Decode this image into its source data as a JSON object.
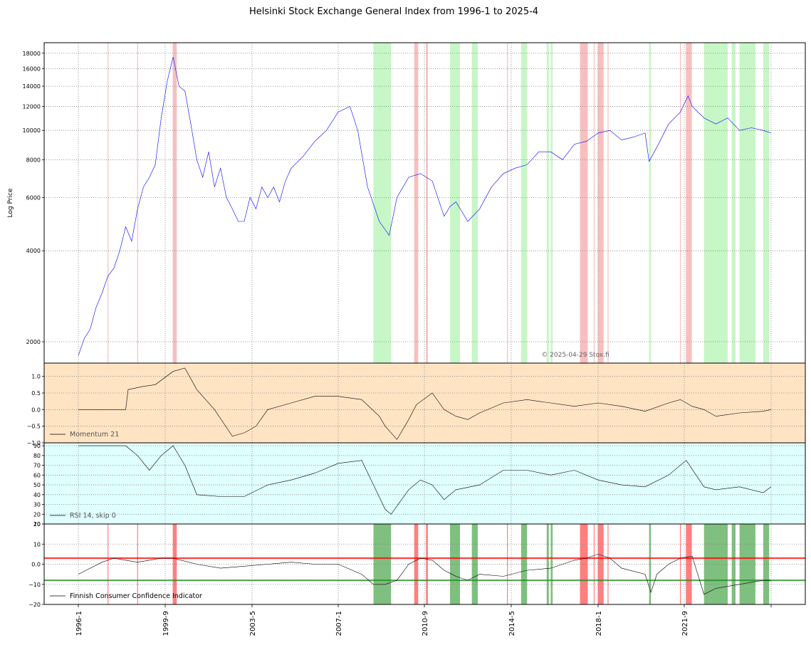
{
  "chart_data": {
    "type": "line",
    "title": "Helsinki Stock Exchange General Index from 1996-1 to 2025-4",
    "watermark": "© 2025-04-29 Stox.fi",
    "x_range": [
      "1996-1",
      "2025-4"
    ],
    "x_ticks": [
      "1996-1",
      "1999-9",
      "2003-5",
      "2007-1",
      "2010-9",
      "2014-5",
      "2018-1",
      "2021-9",
      ""
    ],
    "grid": true,
    "colors": {
      "price": "#0000ff",
      "indicator_line": "#000000",
      "bull_zone": "#90ee90",
      "bear_zone": "#f08080",
      "momentum_bg": "#ffe4c4",
      "rsi_bg": "#e0ffff",
      "upper_threshold": "#ff0000",
      "lower_threshold": "#228b22"
    },
    "zones": {
      "red": [
        [
          1997.25,
          1997.25
        ],
        [
          1998.5,
          1998.5
        ],
        [
          2000.0,
          2000.17
        ],
        [
          2014.17,
          2014.17
        ],
        [
          2010.25,
          2010.42
        ],
        [
          2010.75,
          2010.83
        ],
        [
          2017.25,
          2017.58
        ],
        [
          2017.83,
          2017.83
        ],
        [
          2018.0,
          2018.25
        ],
        [
          2018.42,
          2018.42
        ],
        [
          2021.5,
          2021.5
        ],
        [
          2021.75,
          2022.0
        ]
      ],
      "green": [
        [
          2008.5,
          2009.25
        ],
        [
          2011.75,
          2012.17
        ],
        [
          2012.67,
          2012.92
        ],
        [
          2014.75,
          2015.0
        ],
        [
          2015.83,
          2015.92
        ],
        [
          2016.0,
          2016.08
        ],
        [
          2020.17,
          2020.25
        ],
        [
          2022.5,
          2023.5
        ],
        [
          2023.67,
          2023.83
        ],
        [
          2024.0,
          2024.67
        ],
        [
          2025.0,
          2025.25
        ]
      ]
    },
    "panels": [
      {
        "id": "price",
        "ylabel": "Log Price",
        "scale": "log",
        "ylim": [
          1700,
          19500
        ],
        "yticks": [
          2000,
          4000,
          6000,
          8000,
          10000,
          12000,
          14000,
          16000,
          18000
        ],
        "series": [
          {
            "x": [
              1996.0,
              1996.25,
              1996.5,
              1996.75,
              1997.0,
              1997.25,
              1997.5,
              1997.75,
              1998.0,
              1998.25,
              1998.5,
              1998.75,
              1999.0,
              1999.25,
              1999.5,
              1999.75,
              2000.0,
              2000.25,
              2000.5,
              2000.75,
              2001.0,
              2001.25,
              2001.5,
              2001.75,
              2002.0,
              2002.25,
              2002.5,
              2002.75,
              2003.0,
              2003.25,
              2003.5,
              2003.75,
              2004.0,
              2004.25,
              2004.5,
              2004.75,
              2005.0,
              2005.5,
              2006.0,
              2006.5,
              2007.0,
              2007.5,
              2007.83,
              2008.25,
              2008.75,
              2009.17,
              2009.5,
              2010.0,
              2010.5,
              2011.0,
              2011.5,
              2011.75,
              2012.0,
              2012.5,
              2013.0,
              2013.5,
              2014.0,
              2014.5,
              2015.0,
              2015.5,
              2016.0,
              2016.5,
              2017.0,
              2017.5,
              2018.0,
              2018.5,
              2019.0,
              2019.5,
              2020.0,
              2020.17,
              2020.5,
              2021.0,
              2021.5,
              2021.83,
              2022.0,
              2022.5,
              2023.0,
              2023.5,
              2024.0,
              2024.5,
              2025.0,
              2025.33
            ],
            "y": [
              1800,
              2050,
              2200,
              2600,
              2900,
              3300,
              3500,
              4000,
              4800,
              4300,
              5500,
              6500,
              7000,
              7700,
              11000,
              14500,
              17500,
              14000,
              13500,
              10500,
              8000,
              7000,
              8500,
              6500,
              7500,
              6000,
              5500,
              5000,
              5000,
              6000,
              5500,
              6500,
              6000,
              6500,
              5800,
              6800,
              7500,
              8200,
              9200,
              10000,
              11500,
              12000,
              10000,
              6500,
              5000,
              4500,
              6000,
              7000,
              7200,
              6800,
              5200,
              5600,
              5800,
              5000,
              5500,
              6500,
              7200,
              7500,
              7700,
              8500,
              8500,
              8000,
              9000,
              9200,
              9800,
              10000,
              9300,
              9500,
              9800,
              7900,
              8800,
              10500,
              11500,
              13000,
              12000,
              11000,
              10500,
              11000,
              10000,
              10200,
              10000,
              9800
            ],
            "color": "#0000ff"
          }
        ]
      },
      {
        "id": "momentum",
        "legend": "Momentum 21",
        "ylim": [
          -1.0,
          1.4
        ],
        "yticks": [
          -1.0,
          -0.5,
          0.0,
          0.5,
          1.0
        ],
        "series": [
          {
            "x": [
              1996.0,
              1998.0,
              1998.1,
              1998.75,
              1999.25,
              2000.0,
              2000.5,
              2001.0,
              2001.75,
              2002.5,
              2003.0,
              2003.5,
              2004.0,
              2005.0,
              2006.0,
              2007.0,
              2008.0,
              2008.75,
              2009.0,
              2009.5,
              2010.0,
              2010.33,
              2011.0,
              2011.5,
              2012.0,
              2012.5,
              2013.0,
              2014.0,
              2015.0,
              2016.0,
              2017.0,
              2018.0,
              2019.0,
              2020.0,
              2021.0,
              2021.5,
              2022.0,
              2022.5,
              2023.0,
              2024.0,
              2025.0,
              2025.33
            ],
            "y": [
              0.0,
              0.0,
              0.6,
              0.7,
              0.75,
              1.15,
              1.25,
              0.6,
              0.0,
              -0.8,
              -0.7,
              -0.5,
              0.0,
              0.2,
              0.4,
              0.4,
              0.3,
              -0.2,
              -0.5,
              -0.9,
              -0.3,
              0.15,
              0.5,
              0.0,
              -0.2,
              -0.3,
              -0.1,
              0.2,
              0.3,
              0.2,
              0.1,
              0.2,
              0.1,
              -0.05,
              0.2,
              0.3,
              0.1,
              0.0,
              -0.2,
              -0.1,
              -0.05,
              0.0
            ],
            "color": "#000000"
          }
        ]
      },
      {
        "id": "rsi",
        "legend": "RSI 14, skip 0",
        "ylim": [
          10,
          93
        ],
        "yticks": [
          10,
          20,
          30,
          40,
          50,
          60,
          70,
          80,
          90
        ],
        "series": [
          {
            "x": [
              1996.0,
              1998.0,
              1998.5,
              1999.0,
              1999.5,
              2000.0,
              2000.5,
              2001.0,
              2002.0,
              2003.0,
              2004.0,
              2005.0,
              2006.0,
              2007.0,
              2008.0,
              2008.5,
              2009.0,
              2009.25,
              2010.0,
              2010.5,
              2011.0,
              2011.5,
              2012.0,
              2013.0,
              2014.0,
              2015.0,
              2016.0,
              2017.0,
              2018.0,
              2019.0,
              2020.0,
              2021.0,
              2021.75,
              2022.5,
              2023.0,
              2024.0,
              2025.0,
              2025.33
            ],
            "y": [
              90,
              90,
              80,
              65,
              80,
              90,
              70,
              40,
              38,
              38,
              50,
              55,
              62,
              72,
              75,
              50,
              25,
              20,
              45,
              55,
              50,
              35,
              45,
              50,
              65,
              65,
              60,
              65,
              55,
              50,
              48,
              60,
              75,
              48,
              45,
              48,
              42,
              48
            ],
            "color": "#000000"
          }
        ]
      },
      {
        "id": "confidence",
        "legend": "Finnish Consumer Confidence Indicator",
        "ylim": [
          -20,
          20
        ],
        "yticks": [
          -20,
          -10,
          0,
          10,
          20
        ],
        "thresholds": [
          3,
          -8
        ],
        "series": [
          {
            "x": [
              1996.0,
              1996.5,
              1997.0,
              1997.5,
              1998.0,
              1998.5,
              1999.0,
              1999.5,
              2000.0,
              2001.0,
              2002.0,
              2003.0,
              2004.0,
              2005.0,
              2006.0,
              2007.0,
              2008.0,
              2008.5,
              2009.0,
              2009.5,
              2010.0,
              2010.5,
              2011.0,
              2011.5,
              2012.0,
              2012.5,
              2013.0,
              2014.0,
              2015.0,
              2016.0,
              2017.0,
              2017.5,
              2018.0,
              2018.5,
              2019.0,
              2020.0,
              2020.25,
              2020.5,
              2021.0,
              2021.5,
              2022.0,
              2022.5,
              2023.0,
              2024.0,
              2025.0,
              2025.33
            ],
            "y": [
              -5,
              -2,
              1,
              3,
              2,
              1,
              2,
              3,
              3,
              0,
              -2,
              -1,
              0,
              1,
              0,
              0,
              -5,
              -10,
              -10,
              -8,
              0,
              3,
              2,
              -3,
              -6,
              -8,
              -5,
              -6,
              -3,
              -2,
              2,
              3,
              5,
              3,
              -2,
              -5,
              -14,
              -5,
              0,
              3,
              4,
              -15,
              -12,
              -10,
              -8,
              -8
            ],
            "color": "#000000"
          }
        ]
      }
    ]
  }
}
